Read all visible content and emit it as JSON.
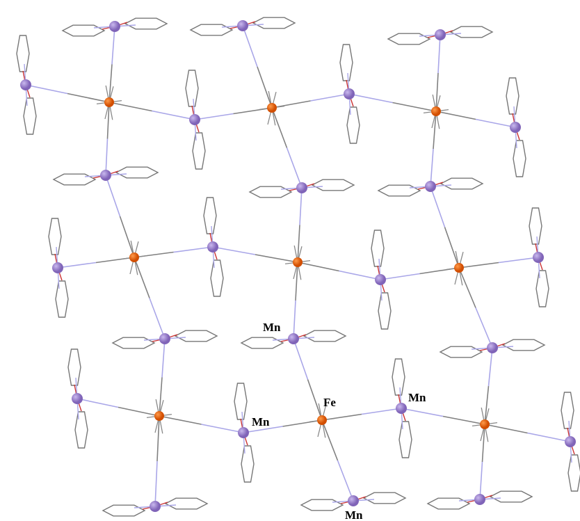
{
  "labels": [
    "Mn",
    "Fe",
    "Mn",
    "Mn",
    "Mn"
  ]
}
